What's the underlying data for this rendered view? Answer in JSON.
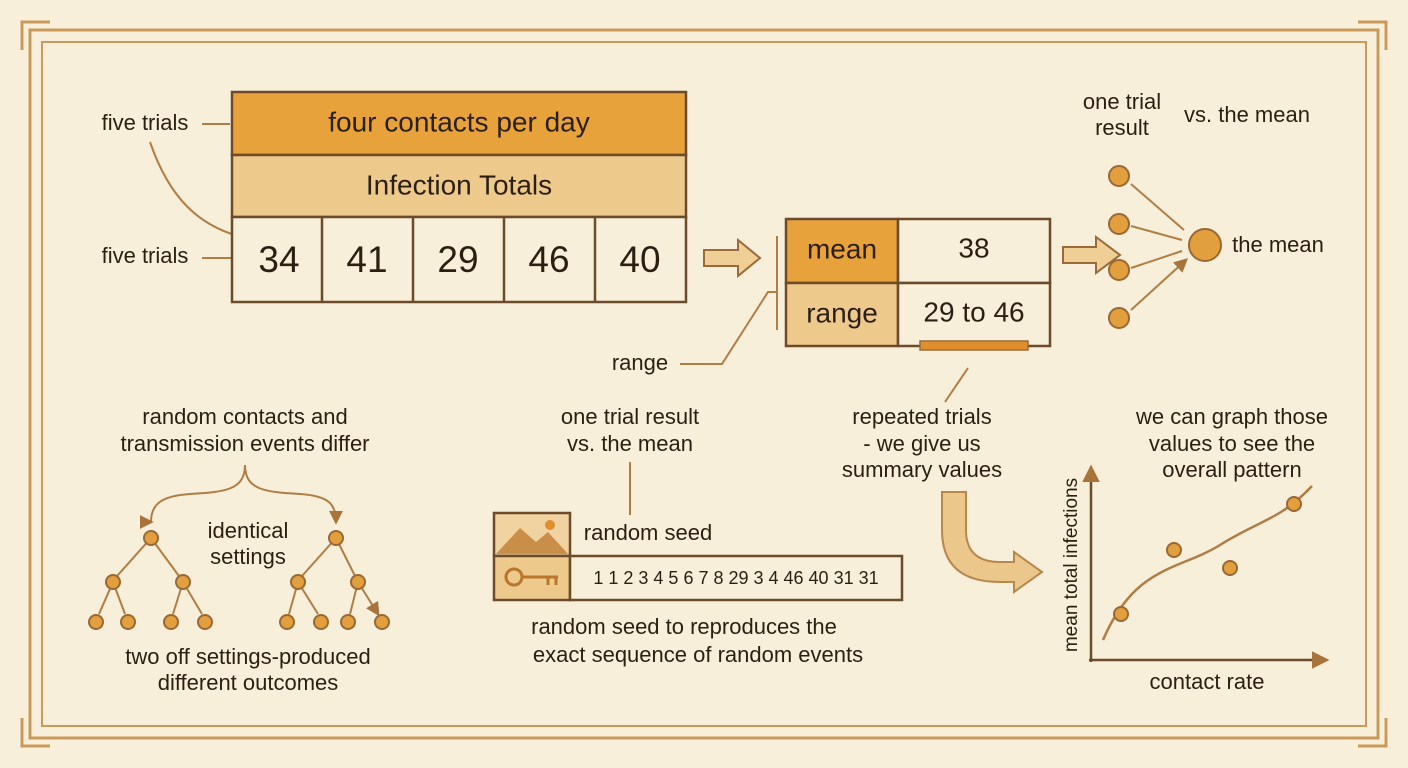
{
  "left_labels": {
    "top": "five trials",
    "bottom": "five trials"
  },
  "table": {
    "header": "four contacts per day",
    "subheader": "Infection Totals",
    "values": [
      34,
      41,
      29,
      46,
      40
    ]
  },
  "summary": {
    "mean_label": "mean",
    "mean_value": 38,
    "range_label": "range",
    "range_value": "29 to 46",
    "range_callout": "range"
  },
  "mean_diagram": {
    "one_trial": [
      "one trial",
      "result"
    ],
    "versus": "vs.  the mean",
    "the_mean": "the mean"
  },
  "randomness": {
    "heading": [
      "random contacts and",
      "transmission events differ"
    ],
    "center": [
      "identical",
      "settings"
    ],
    "caption": [
      "two off settings-produced",
      "different outcomes"
    ]
  },
  "seed": {
    "heading": [
      "one trial result",
      "vs. the mean"
    ],
    "label": "random seed",
    "sequence": "1 1 2 3 4 5 6 7 8 29 3 4 46 40 31 31",
    "caption": [
      "random seed to reproduces the",
      "exact sequence of random events"
    ]
  },
  "repeated": {
    "lines": [
      "repeated trials",
      "- we give us",
      "summary values"
    ]
  },
  "graph": {
    "caption": [
      "we can graph those",
      "values to see the",
      "overall pattern"
    ],
    "y_label": "mean total infections",
    "x_label": "contact rate"
  }
}
